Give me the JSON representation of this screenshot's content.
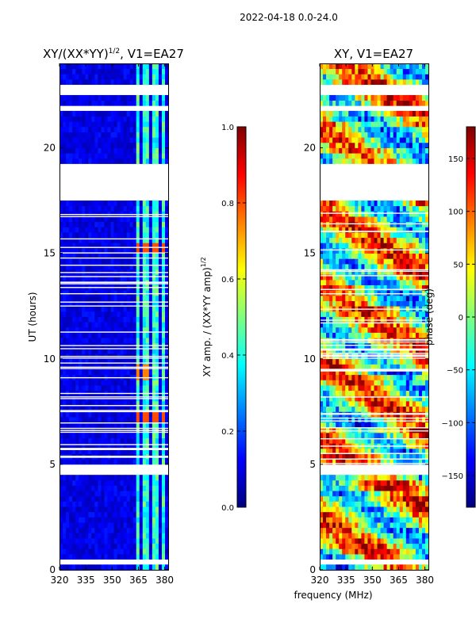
{
  "suptitle": "2022-04-18 0.0-24.0",
  "xlabel_common": "frequency (MHz)",
  "colormap": [
    "#00007f",
    "#0000ff",
    "#007fff",
    "#00ffff",
    "#7fff7f",
    "#ffff00",
    "#ff7f00",
    "#ff0000",
    "#7f0000"
  ],
  "chart_data": [
    {
      "type": "heatmap",
      "title": "XY/(XX*YY)",
      "title_exponent": "1/2",
      "title_suffix": ", V1=EA27",
      "xlabel": "",
      "ylabel": "UT (hours)",
      "xlim": [
        320,
        382
      ],
      "ylim": [
        0,
        24
      ],
      "xticks": [
        320,
        335,
        350,
        365,
        380
      ],
      "yticks": [
        0,
        5,
        10,
        15,
        20
      ],
      "colorbar": {
        "label": "XY amp. / (XX*YY amp)",
        "label_exponent": "1/2",
        "range": [
          0.0,
          1.0
        ],
        "ticks": [
          "0.0",
          "0.2",
          "0.4",
          "0.6",
          "0.8",
          "1.0"
        ],
        "tick_values": [
          0.0,
          0.2,
          0.4,
          0.6,
          0.8,
          1.0
        ]
      },
      "blank_ut_ranges": [
        [
          0.3,
          0.6
        ],
        [
          4.4,
          4.95
        ],
        [
          17.4,
          19.3
        ],
        [
          21.7,
          22.0
        ],
        [
          22.6,
          22.9
        ]
      ],
      "bright_bands_mhz": [
        [
          363,
          366
        ],
        [
          368,
          371
        ],
        [
          372,
          376
        ],
        [
          378,
          381
        ]
      ],
      "dominant_value": 0.05,
      "band_value": 0.42,
      "hot_spots": [
        {
          "ut": 7.2,
          "mhz": [
            363,
            381
          ],
          "value": 0.8
        },
        {
          "ut": 9.4,
          "mhz": [
            363,
            371
          ],
          "value": 0.75
        },
        {
          "ut": 15.2,
          "mhz": [
            363,
            381
          ],
          "value": 0.8
        }
      ]
    },
    {
      "type": "heatmap",
      "title": "XY, V1=EA27",
      "xlabel": "frequency (MHz)",
      "ylabel": "",
      "xlim": [
        320,
        382
      ],
      "ylim": [
        0,
        24
      ],
      "xticks": [
        320,
        335,
        350,
        365,
        380
      ],
      "yticks": [
        0,
        5,
        10,
        15,
        20
      ],
      "colorbar": {
        "label": "phase (deg)",
        "range": [
          -180,
          180
        ],
        "ticks": [
          "−150",
          "−100",
          "−50",
          "0",
          "50",
          "100",
          "150"
        ],
        "tick_values": [
          -150,
          -100,
          -50,
          0,
          50,
          100,
          150
        ]
      },
      "blank_ut_ranges": [
        [
          0.3,
          0.6
        ],
        [
          4.4,
          4.95
        ],
        [
          17.4,
          19.3
        ],
        [
          21.7,
          22.0
        ],
        [
          22.6,
          22.9
        ]
      ],
      "value_range": [
        -180,
        180
      ]
    }
  ]
}
